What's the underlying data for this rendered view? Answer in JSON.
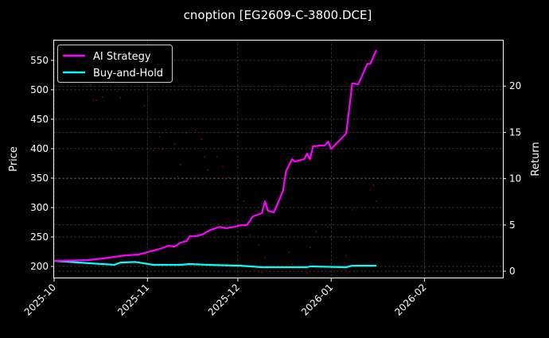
{
  "chart_data": {
    "type": "line",
    "title": "cnoption [EG2609-C-3800.DCE]",
    "ylabel": "Price",
    "y2label": "Return",
    "xlim": [
      "2025-10-01",
      "2026-02-27"
    ],
    "ylim": [
      179.7,
      585
    ],
    "y2lim": [
      -0.77,
      25
    ],
    "x_ticks": [
      "2025-10",
      "2025-11",
      "2025-12",
      "2026-01",
      "2026-02"
    ],
    "x_tick_dates": [
      "2025-10-01",
      "2025-11-01",
      "2025-12-01",
      "2026-01-01",
      "2026-02-01"
    ],
    "y_ticks": [
      200,
      250,
      300,
      350,
      400,
      450,
      500,
      550
    ],
    "y2_ticks": [
      0,
      5,
      10,
      15,
      20
    ],
    "grid": true,
    "legend_position": "top-left",
    "colors": {
      "ai": "#ff00ff",
      "bh": "#00ffff",
      "price": "#ff0000"
    },
    "series": [
      {
        "name": "AI Strategy",
        "axis": "right",
        "x": [
          "2025-10-01",
          "2025-10-12",
          "2025-10-17",
          "2025-10-25",
          "2025-10-29",
          "2025-11-03",
          "2025-11-05",
          "2025-11-08",
          "2025-11-10",
          "2025-11-12",
          "2025-11-14",
          "2025-11-15",
          "2025-11-17",
          "2025-11-19",
          "2025-11-22",
          "2025-11-25",
          "2025-11-27",
          "2025-11-30",
          "2025-12-02",
          "2025-12-04",
          "2025-12-06",
          "2025-12-09",
          "2025-12-10",
          "2025-12-11",
          "2025-12-13",
          "2025-12-16",
          "2025-12-17",
          "2025-12-19",
          "2025-12-20",
          "2025-12-23",
          "2025-12-24",
          "2025-12-25",
          "2025-12-26",
          "2025-12-30",
          "2025-12-31",
          "2026-01-01",
          "2026-01-06",
          "2026-01-08",
          "2026-01-10",
          "2026-01-13",
          "2026-01-14",
          "2026-01-16"
        ],
        "y": [
          1.12,
          1.2,
          1.37,
          1.72,
          1.8,
          2.23,
          2.4,
          2.75,
          2.66,
          3.09,
          3.26,
          3.78,
          3.78,
          3.95,
          4.46,
          4.8,
          4.64,
          4.8,
          4.98,
          4.98,
          5.92,
          6.27,
          7.55,
          6.52,
          6.35,
          8.67,
          10.8,
          12.1,
          11.85,
          12.1,
          12.7,
          12.1,
          13.5,
          13.6,
          14.0,
          13.2,
          14.9,
          20.3,
          20.2,
          22.4,
          22.4,
          23.9
        ]
      },
      {
        "name": "Buy-and-Hold",
        "axis": "right",
        "x": [
          "2025-10-01",
          "2025-10-21",
          "2025-10-23",
          "2025-10-28",
          "2025-11-03",
          "2025-11-12",
          "2025-11-15",
          "2025-11-21",
          "2025-12-02",
          "2025-12-09",
          "2025-12-17",
          "2025-12-24",
          "2025-12-25",
          "2026-01-06",
          "2026-01-08",
          "2026-01-16"
        ],
        "y": [
          1.12,
          0.69,
          0.94,
          1.0,
          0.69,
          0.69,
          0.78,
          0.69,
          0.6,
          0.43,
          0.43,
          0.43,
          0.52,
          0.43,
          0.6,
          0.6
        ]
      },
      {
        "name": "",
        "axis": "left",
        "style": "dots",
        "x": [
          "2025-10-13",
          "2025-10-14",
          "2025-10-15",
          "2025-10-17",
          "2025-10-20",
          "2025-10-22",
          "2025-10-23",
          "2025-10-31",
          "2025-11-03",
          "2025-11-05",
          "2025-11-06",
          "2025-11-07",
          "2025-11-10",
          "2025-11-11",
          "2025-11-12",
          "2025-11-14",
          "2025-11-17",
          "2025-11-19",
          "2025-11-20",
          "2025-11-21",
          "2025-11-24",
          "2025-11-26",
          "2025-11-28",
          "2025-12-01",
          "2025-12-03",
          "2025-12-05",
          "2025-12-08",
          "2025-12-09",
          "2025-12-10",
          "2025-12-18",
          "2025-12-19",
          "2025-12-24",
          "2025-12-25",
          "2025-12-27",
          "2025-12-31",
          "2026-01-01",
          "2026-01-06",
          "2026-01-07",
          "2026-01-08",
          "2026-01-14",
          "2026-01-15",
          "2026-01-16"
        ],
        "y": [
          508,
          482,
          482,
          488,
          397,
          497,
          486,
          473,
          397,
          420,
          399,
          432,
          408,
          353,
          373,
          426,
          432,
          416,
          386,
          364,
          386,
          370,
          351,
          334,
          311,
          253,
          236,
          189,
          214,
          224,
          204,
          189,
          232,
          259,
          266,
          251,
          218,
          245,
          296,
          330,
          338,
          311
        ]
      }
    ]
  }
}
